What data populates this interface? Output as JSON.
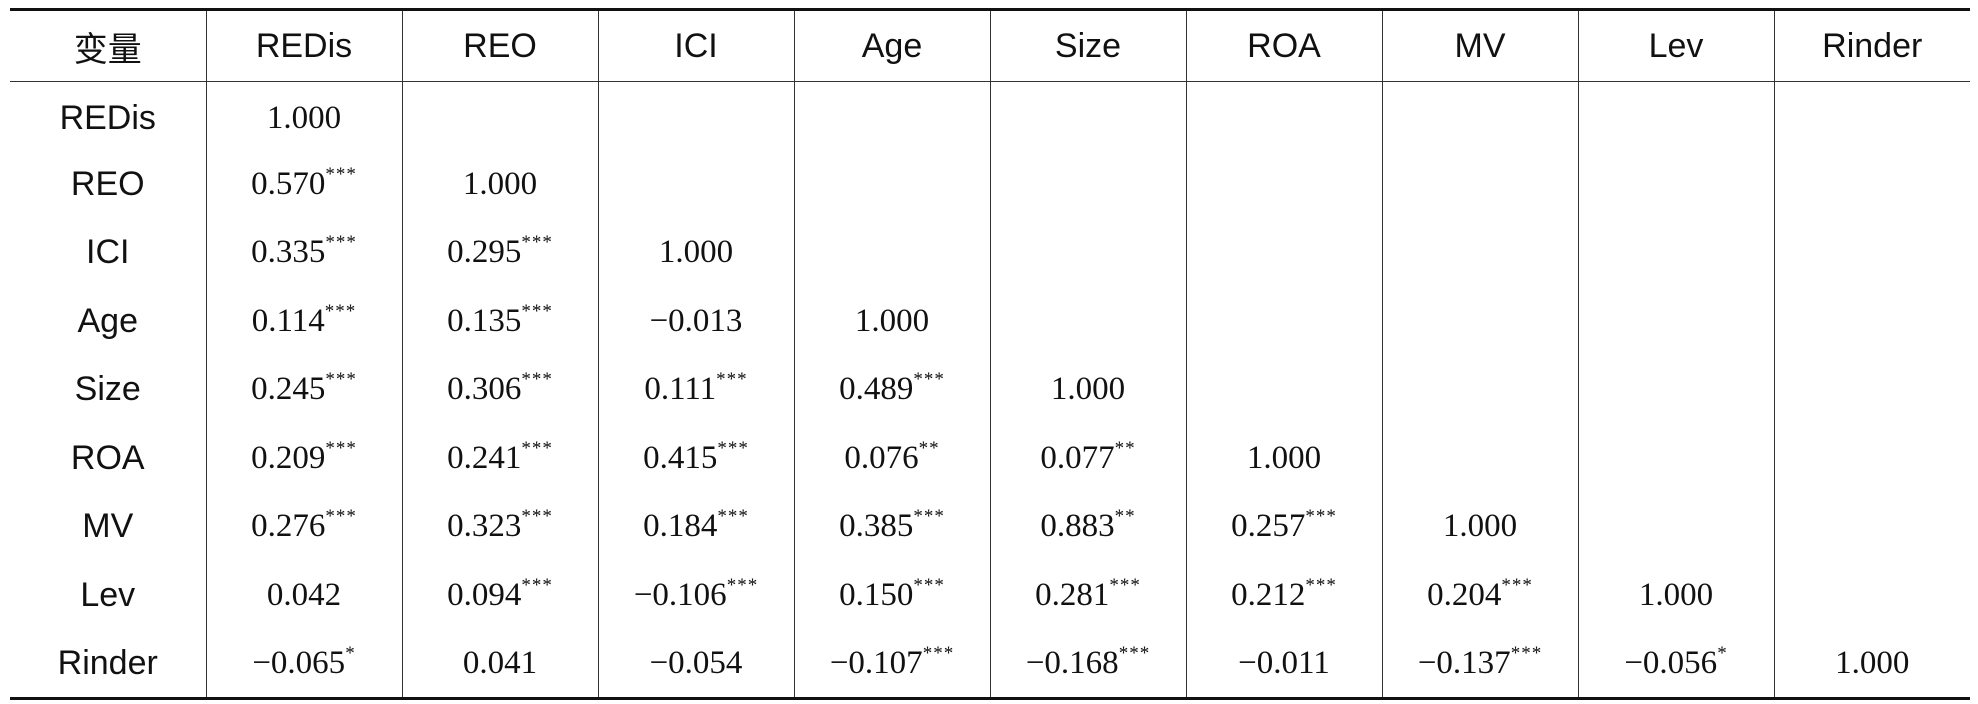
{
  "table": {
    "corner_label": "变量",
    "columns": [
      "REDis",
      "REO",
      "ICI",
      "Age",
      "Size",
      "ROA",
      "MV",
      "Lev",
      "Rinder"
    ],
    "rows": [
      {
        "label": "REDis",
        "cells": [
          {
            "value": "1.000",
            "sig": ""
          }
        ]
      },
      {
        "label": "REO",
        "cells": [
          {
            "value": "0.570",
            "sig": "***"
          },
          {
            "value": "1.000",
            "sig": ""
          }
        ]
      },
      {
        "label": "ICI",
        "cells": [
          {
            "value": "0.335",
            "sig": "***"
          },
          {
            "value": "0.295",
            "sig": "***"
          },
          {
            "value": "1.000",
            "sig": ""
          }
        ]
      },
      {
        "label": "Age",
        "cells": [
          {
            "value": "0.114",
            "sig": "***"
          },
          {
            "value": "0.135",
            "sig": "***"
          },
          {
            "value": "−0.013",
            "sig": ""
          },
          {
            "value": "1.000",
            "sig": ""
          }
        ]
      },
      {
        "label": "Size",
        "cells": [
          {
            "value": "0.245",
            "sig": "***"
          },
          {
            "value": "0.306",
            "sig": "***"
          },
          {
            "value": "0.111",
            "sig": "***"
          },
          {
            "value": "0.489",
            "sig": "***"
          },
          {
            "value": "1.000",
            "sig": ""
          }
        ]
      },
      {
        "label": "ROA",
        "cells": [
          {
            "value": "0.209",
            "sig": "***"
          },
          {
            "value": "0.241",
            "sig": "***"
          },
          {
            "value": "0.415",
            "sig": "***"
          },
          {
            "value": "0.076",
            "sig": "**"
          },
          {
            "value": "0.077",
            "sig": "**"
          },
          {
            "value": "1.000",
            "sig": ""
          }
        ]
      },
      {
        "label": "MV",
        "cells": [
          {
            "value": "0.276",
            "sig": "***"
          },
          {
            "value": "0.323",
            "sig": "***"
          },
          {
            "value": "0.184",
            "sig": "***"
          },
          {
            "value": "0.385",
            "sig": "***"
          },
          {
            "value": "0.883",
            "sig": "**"
          },
          {
            "value": "0.257",
            "sig": "***"
          },
          {
            "value": "1.000",
            "sig": ""
          }
        ]
      },
      {
        "label": "Lev",
        "cells": [
          {
            "value": "0.042",
            "sig": ""
          },
          {
            "value": "0.094",
            "sig": "***"
          },
          {
            "value": "−0.106",
            "sig": "***"
          },
          {
            "value": "0.150",
            "sig": "***"
          },
          {
            "value": "0.281",
            "sig": "***"
          },
          {
            "value": "0.212",
            "sig": "***"
          },
          {
            "value": "0.204",
            "sig": "***"
          },
          {
            "value": "1.000",
            "sig": ""
          }
        ]
      },
      {
        "label": "Rinder",
        "cells": [
          {
            "value": "−0.065",
            "sig": "*"
          },
          {
            "value": "0.041",
            "sig": ""
          },
          {
            "value": "−0.054",
            "sig": ""
          },
          {
            "value": "−0.107",
            "sig": "***"
          },
          {
            "value": "−0.168",
            "sig": "***"
          },
          {
            "value": "−0.011",
            "sig": ""
          },
          {
            "value": "−0.137",
            "sig": "***"
          },
          {
            "value": "−0.056",
            "sig": "*"
          },
          {
            "value": "1.000",
            "sig": ""
          }
        ]
      }
    ]
  }
}
